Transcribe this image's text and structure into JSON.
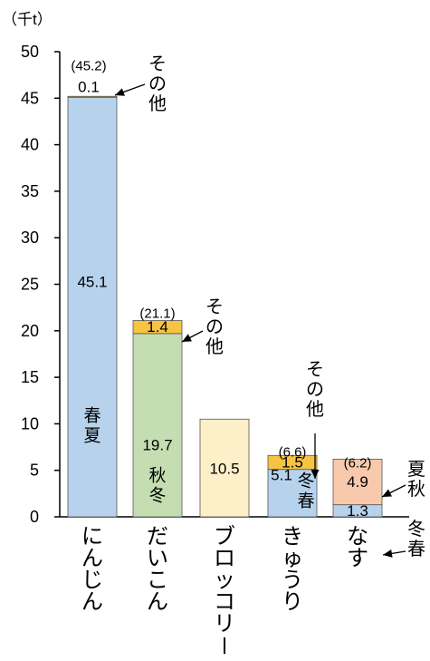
{
  "chart_data": {
    "type": "bar",
    "stacked": true,
    "unit": "（千t）",
    "ylim": [
      0,
      50
    ],
    "yticks": [
      "0",
      "5",
      "10",
      "15",
      "20",
      "25",
      "30",
      "35",
      "40",
      "45",
      "50"
    ],
    "categories": [
      "にんじん",
      "だいこん",
      "ブロッコリー",
      "きゅうり",
      "なす"
    ],
    "bars": [
      {
        "category": "にんじん",
        "total_label": "(45.2)",
        "segments": [
          {
            "value": 45.1,
            "label": "45.1",
            "color": "#b7d2ec",
            "season": "春夏"
          },
          {
            "value": 0.1,
            "label": "0.1",
            "color": "#f6c343",
            "note": "その他"
          }
        ]
      },
      {
        "category": "だいこん",
        "total_label": "(21.1)",
        "segments": [
          {
            "value": 19.7,
            "label": "19.7",
            "color": "#c5deb1",
            "season": "秋冬"
          },
          {
            "value": 1.4,
            "label": "1.4",
            "color": "#f6c343",
            "note": "その他"
          }
        ]
      },
      {
        "category": "ブロッコリー",
        "total_label": "",
        "segments": [
          {
            "value": 10.5,
            "label": "10.5",
            "color": "#fdf0c9"
          }
        ]
      },
      {
        "category": "きゅうり",
        "total_label": "(6.6)",
        "segments": [
          {
            "value": 5.1,
            "label": "5.1",
            "color": "#b7d2ec",
            "season": "冬春"
          },
          {
            "value": 1.5,
            "label": "1.5",
            "color": "#f6c343",
            "note": "その他"
          }
        ]
      },
      {
        "category": "なす",
        "total_label": "(6.2)",
        "segments": [
          {
            "value": 1.3,
            "label": "1.3",
            "color": "#b7d2ec",
            "note": "冬春"
          },
          {
            "value": 4.9,
            "label": "4.9",
            "color": "#f8c9ad",
            "note": "夏秋"
          }
        ]
      }
    ],
    "grid": false,
    "legend": "none"
  }
}
